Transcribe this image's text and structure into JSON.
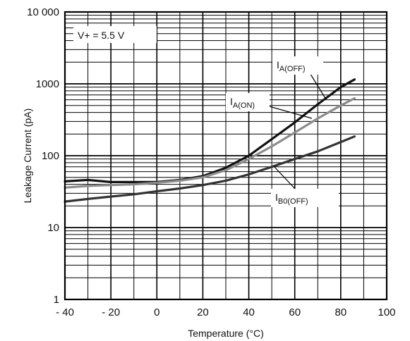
{
  "chart_data": {
    "type": "line",
    "xlabel": "Temperature (°C)",
    "ylabel": "Leakage Current (pA)",
    "xlim": [
      -40,
      100
    ],
    "ylim": [
      1,
      10000
    ],
    "yscale": "log",
    "grid": true,
    "x_ticks": [
      -40,
      -20,
      0,
      20,
      40,
      60,
      80,
      100
    ],
    "x_tick_labels": [
      "- 40",
      "- 20",
      "0",
      "20",
      "40",
      "60",
      "80",
      "100"
    ],
    "y_ticks": [
      1,
      10,
      100,
      1000,
      10000
    ],
    "y_tick_labels": [
      "1",
      "10",
      "100",
      "1000",
      "10 000"
    ],
    "condition_label": "V+ = 5.5 V",
    "series": [
      {
        "id": "ia_off",
        "label_main": "I",
        "label_sub": "A(OFF)",
        "color": "#111111",
        "x": [
          -40,
          -30,
          -20,
          -10,
          0,
          10,
          20,
          30,
          40,
          50,
          60,
          70,
          80,
          86
        ],
        "y": [
          44,
          46,
          43,
          43,
          43,
          46,
          52,
          68,
          100,
          170,
          290,
          520,
          900,
          1150
        ]
      },
      {
        "id": "ia_on",
        "label_main": "I",
        "label_sub": "A(ON)",
        "color": "#8c8c8c",
        "x": [
          -40,
          -30,
          -20,
          -10,
          0,
          10,
          20,
          30,
          40,
          50,
          60,
          70,
          80,
          86
        ],
        "y": [
          36,
          38,
          39,
          40,
          42,
          45,
          50,
          63,
          90,
          135,
          210,
          330,
          500,
          630
        ]
      },
      {
        "id": "ib0_off",
        "label_main": "I",
        "label_sub": "B0(OFF)",
        "color": "#333333",
        "x": [
          -40,
          -30,
          -20,
          -10,
          0,
          10,
          20,
          30,
          40,
          50,
          60,
          70,
          80,
          86
        ],
        "y": [
          23,
          25,
          27,
          29,
          32,
          35,
          39,
          45,
          55,
          70,
          90,
          115,
          155,
          185
        ]
      }
    ]
  }
}
